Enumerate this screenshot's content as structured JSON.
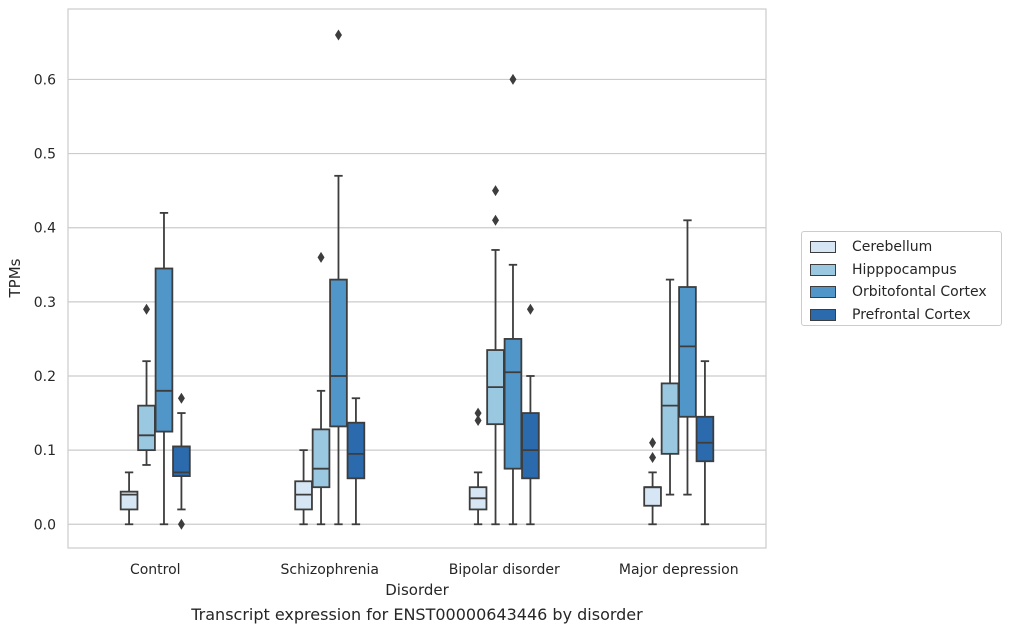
{
  "chart_data": {
    "type": "box",
    "caption": "Transcript expression for ENST00000643446 by disorder",
    "xlabel": "Disorder",
    "ylabel": "TPMs",
    "ylim": [
      -0.032,
      0.695
    ],
    "yticks": [
      0.0,
      0.1,
      0.2,
      0.3,
      0.4,
      0.5,
      0.6
    ],
    "ytick_labels": [
      "0.0",
      "0.1",
      "0.2",
      "0.3",
      "0.4",
      "0.5",
      "0.6"
    ],
    "grid": true,
    "legend_position": "right",
    "categories": [
      "Control",
      "Schizophrenia",
      "Bipolar disorder",
      "Major depression"
    ],
    "series": [
      {
        "name": "Cerebellum",
        "color": "#d6e6f4",
        "boxes": [
          {
            "whisker_low": 0.0,
            "q1": 0.02,
            "median": 0.04,
            "q3": 0.044,
            "whisker_high": 0.07,
            "outliers": []
          },
          {
            "whisker_low": 0.0,
            "q1": 0.02,
            "median": 0.04,
            "q3": 0.058,
            "whisker_high": 0.1,
            "outliers": []
          },
          {
            "whisker_low": 0.0,
            "q1": 0.02,
            "median": 0.035,
            "q3": 0.05,
            "whisker_high": 0.07,
            "outliers": [
              0.14,
              0.15
            ]
          },
          {
            "whisker_low": 0.0,
            "q1": 0.025,
            "median": 0.05,
            "q3": 0.05,
            "whisker_high": 0.07,
            "outliers": [
              0.09,
              0.11
            ]
          }
        ]
      },
      {
        "name": "Hipppocampus",
        "color": "#9ac8e0",
        "boxes": [
          {
            "whisker_low": 0.08,
            "q1": 0.1,
            "median": 0.12,
            "q3": 0.16,
            "whisker_high": 0.22,
            "outliers": [
              0.29
            ]
          },
          {
            "whisker_low": 0.0,
            "q1": 0.05,
            "median": 0.075,
            "q3": 0.128,
            "whisker_high": 0.18,
            "outliers": [
              0.36
            ]
          },
          {
            "whisker_low": 0.0,
            "q1": 0.135,
            "median": 0.185,
            "q3": 0.235,
            "whisker_high": 0.37,
            "outliers": [
              0.41,
              0.45
            ]
          },
          {
            "whisker_low": 0.04,
            "q1": 0.095,
            "median": 0.16,
            "q3": 0.19,
            "whisker_high": 0.33,
            "outliers": []
          }
        ]
      },
      {
        "name": "Orbitofontal Cortex",
        "color": "#5096c8",
        "boxes": [
          {
            "whisker_low": 0.0,
            "q1": 0.125,
            "median": 0.18,
            "q3": 0.345,
            "whisker_high": 0.42,
            "outliers": []
          },
          {
            "whisker_low": 0.0,
            "q1": 0.132,
            "median": 0.2,
            "q3": 0.33,
            "whisker_high": 0.47,
            "outliers": [
              0.66
            ]
          },
          {
            "whisker_low": 0.0,
            "q1": 0.075,
            "median": 0.205,
            "q3": 0.25,
            "whisker_high": 0.35,
            "outliers": [
              0.6
            ]
          },
          {
            "whisker_low": 0.04,
            "q1": 0.145,
            "median": 0.24,
            "q3": 0.32,
            "whisker_high": 0.41,
            "outliers": []
          }
        ]
      },
      {
        "name": "Prefrontal Cortex",
        "color": "#2a6aad",
        "boxes": [
          {
            "whisker_low": 0.02,
            "q1": 0.065,
            "median": 0.07,
            "q3": 0.105,
            "whisker_high": 0.15,
            "outliers": [
              0.0,
              0.17
            ]
          },
          {
            "whisker_low": 0.0,
            "q1": 0.062,
            "median": 0.095,
            "q3": 0.137,
            "whisker_high": 0.17,
            "outliers": []
          },
          {
            "whisker_low": 0.0,
            "q1": 0.062,
            "median": 0.1,
            "q3": 0.15,
            "whisker_high": 0.2,
            "outliers": [
              0.29
            ]
          },
          {
            "whisker_low": 0.0,
            "q1": 0.085,
            "median": 0.11,
            "q3": 0.145,
            "whisker_high": 0.22,
            "outliers": []
          }
        ]
      }
    ]
  }
}
